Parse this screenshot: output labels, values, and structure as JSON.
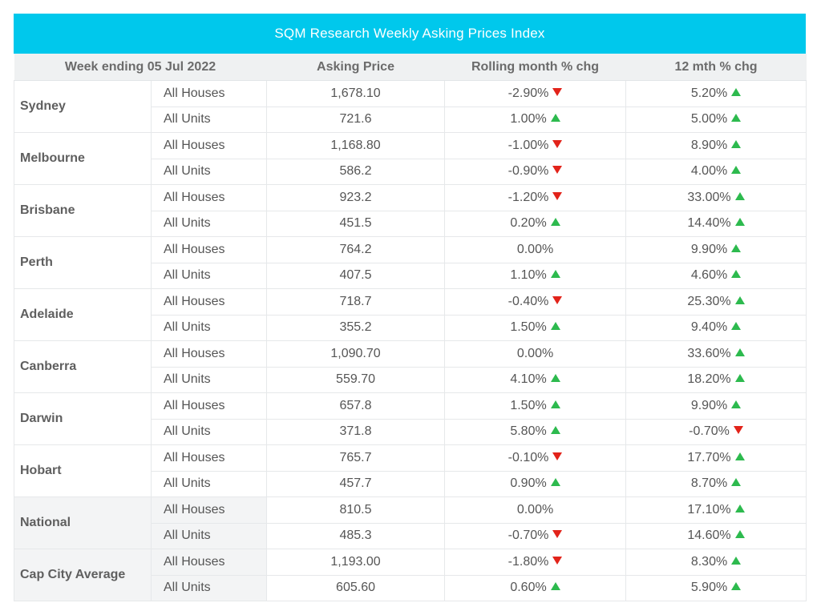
{
  "chart_data": {
    "type": "table",
    "title": "SQM Research Weekly Asking Prices Index",
    "columns": [
      "Week ending 05 Jul 2022",
      "Asking Price",
      "Rolling month % chg",
      "12 mth % chg"
    ],
    "colors": {
      "header_bar": "#00c8ec",
      "up": "#2dba4e",
      "down": "#e2231a"
    },
    "cities": [
      {
        "name": "Sydney",
        "shaded": false,
        "rows": [
          {
            "type": "All Houses",
            "price": "1,678.10",
            "roll": "-2.90%",
            "roll_dir": "down",
            "yoy": "5.20%",
            "yoy_dir": "up"
          },
          {
            "type": "All Units",
            "price": "721.6",
            "roll": "1.00%",
            "roll_dir": "up",
            "yoy": "5.00%",
            "yoy_dir": "up"
          }
        ]
      },
      {
        "name": "Melbourne",
        "shaded": false,
        "rows": [
          {
            "type": "All Houses",
            "price": "1,168.80",
            "roll": "-1.00%",
            "roll_dir": "down",
            "yoy": "8.90%",
            "yoy_dir": "up"
          },
          {
            "type": "All Units",
            "price": "586.2",
            "roll": "-0.90%",
            "roll_dir": "down",
            "yoy": "4.00%",
            "yoy_dir": "up"
          }
        ]
      },
      {
        "name": "Brisbane",
        "shaded": false,
        "rows": [
          {
            "type": "All Houses",
            "price": "923.2",
            "roll": "-1.20%",
            "roll_dir": "down",
            "yoy": "33.00%",
            "yoy_dir": "up"
          },
          {
            "type": "All Units",
            "price": "451.5",
            "roll": "0.20%",
            "roll_dir": "up",
            "yoy": "14.40%",
            "yoy_dir": "up"
          }
        ]
      },
      {
        "name": "Perth",
        "shaded": false,
        "rows": [
          {
            "type": "All Houses",
            "price": "764.2",
            "roll": "0.00%",
            "roll_dir": "none",
            "yoy": "9.90%",
            "yoy_dir": "up"
          },
          {
            "type": "All Units",
            "price": "407.5",
            "roll": "1.10%",
            "roll_dir": "up",
            "yoy": "4.60%",
            "yoy_dir": "up"
          }
        ]
      },
      {
        "name": "Adelaide",
        "shaded": false,
        "rows": [
          {
            "type": "All Houses",
            "price": "718.7",
            "roll": "-0.40%",
            "roll_dir": "down",
            "yoy": "25.30%",
            "yoy_dir": "up"
          },
          {
            "type": "All Units",
            "price": "355.2",
            "roll": "1.50%",
            "roll_dir": "up",
            "yoy": "9.40%",
            "yoy_dir": "up"
          }
        ]
      },
      {
        "name": "Canberra",
        "shaded": false,
        "rows": [
          {
            "type": "All Houses",
            "price": "1,090.70",
            "roll": "0.00%",
            "roll_dir": "none",
            "yoy": "33.60%",
            "yoy_dir": "up"
          },
          {
            "type": "All Units",
            "price": "559.70",
            "roll": "4.10%",
            "roll_dir": "up",
            "yoy": "18.20%",
            "yoy_dir": "up"
          }
        ]
      },
      {
        "name": "Darwin",
        "shaded": false,
        "rows": [
          {
            "type": "All Houses",
            "price": "657.8",
            "roll": "1.50%",
            "roll_dir": "up",
            "yoy": "9.90%",
            "yoy_dir": "up"
          },
          {
            "type": "All Units",
            "price": "371.8",
            "roll": "5.80%",
            "roll_dir": "up",
            "yoy": "-0.70%",
            "yoy_dir": "down"
          }
        ]
      },
      {
        "name": "Hobart",
        "shaded": false,
        "rows": [
          {
            "type": "All Houses",
            "price": "765.7",
            "roll": "-0.10%",
            "roll_dir": "down",
            "yoy": "17.70%",
            "yoy_dir": "up"
          },
          {
            "type": "All Units",
            "price": "457.7",
            "roll": "0.90%",
            "roll_dir": "up",
            "yoy": "8.70%",
            "yoy_dir": "up"
          }
        ]
      },
      {
        "name": "National",
        "shaded": true,
        "rows": [
          {
            "type": "All Houses",
            "price": "810.5",
            "roll": "0.00%",
            "roll_dir": "none",
            "yoy": "17.10%",
            "yoy_dir": "up"
          },
          {
            "type": "All Units",
            "price": "485.3",
            "roll": "-0.70%",
            "roll_dir": "down",
            "yoy": "14.60%",
            "yoy_dir": "up"
          }
        ]
      },
      {
        "name": "Cap City Average",
        "shaded": true,
        "rows": [
          {
            "type": "All Houses",
            "price": "1,193.00",
            "roll": "-1.80%",
            "roll_dir": "down",
            "yoy": "8.30%",
            "yoy_dir": "up"
          },
          {
            "type": "All Units",
            "price": "605.60",
            "roll": "0.60%",
            "roll_dir": "up",
            "yoy": "5.90%",
            "yoy_dir": "up"
          }
        ]
      }
    ]
  }
}
